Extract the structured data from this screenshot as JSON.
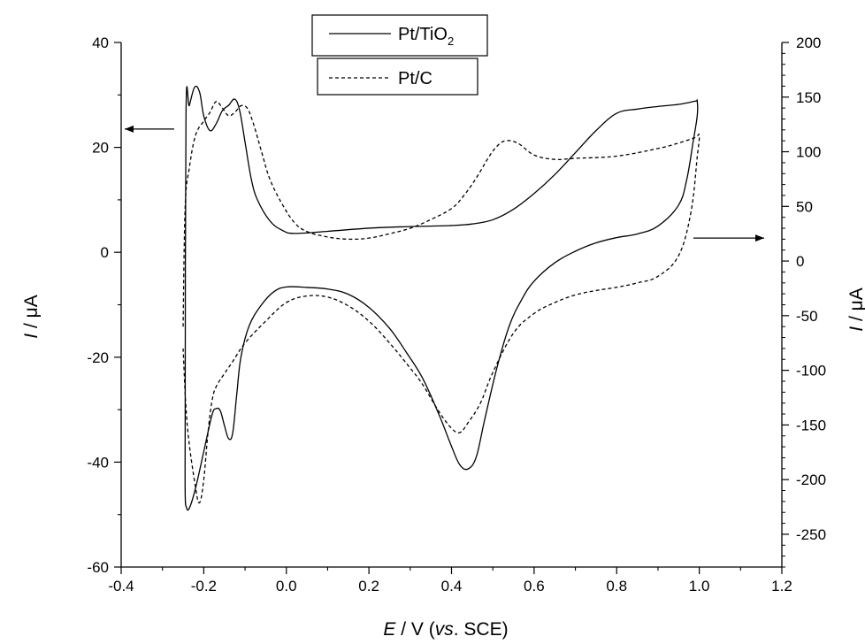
{
  "chart_data": {
    "type": "line",
    "xlabel": {
      "italic": "E",
      "rest": " / V (",
      "italic2": "vs",
      "rest2": ". SCE)"
    },
    "ylabel_left": {
      "italic": "I",
      "rest": " / μA"
    },
    "ylabel_right": {
      "italic": "I",
      "rest": " / μA"
    },
    "xlim": [
      -0.4,
      1.2
    ],
    "ylim_left": [
      -60,
      40
    ],
    "ylim_right": [
      -280,
      200
    ],
    "x_ticks": [
      "-0.4",
      "-0.2",
      "0.0",
      "0.2",
      "0.4",
      "0.6",
      "0.8",
      "1.0",
      "1.2"
    ],
    "y_left_ticks": [
      "-60",
      "-40",
      "-20",
      "0",
      "20",
      "40"
    ],
    "y_right_ticks": [
      "-250",
      "-200",
      "-150",
      "-100",
      "-50",
      "0",
      "50",
      "100",
      "150",
      "200"
    ],
    "legend": [
      {
        "label_main": "Pt/TiO",
        "label_sub": "2",
        "style": "solid"
      },
      {
        "label_main": "Pt/C",
        "label_sub": "",
        "style": "dashed"
      }
    ],
    "series": [
      {
        "name": "Pt/TiO2",
        "axis": "left",
        "style": "solid",
        "x": [
          -0.245,
          -0.243,
          -0.235,
          -0.222,
          -0.21,
          -0.2,
          -0.185,
          -0.17,
          -0.155,
          -0.14,
          -0.125,
          -0.113,
          -0.1,
          -0.085,
          -0.07,
          -0.04,
          -0.01,
          0.02,
          0.1,
          0.2,
          0.3,
          0.4,
          0.45,
          0.5,
          0.55,
          0.6,
          0.65,
          0.7,
          0.75,
          0.8,
          0.85,
          0.9,
          0.95,
          0.99,
          0.995,
          0.995,
          0.985,
          0.97,
          0.95,
          0.9,
          0.85,
          0.8,
          0.75,
          0.7,
          0.65,
          0.6,
          0.57,
          0.54,
          0.51,
          0.48,
          0.46,
          0.44,
          0.42,
          0.4,
          0.37,
          0.33,
          0.29,
          0.25,
          0.2,
          0.15,
          0.1,
          0.05,
          0.0,
          -0.03,
          -0.06,
          -0.09,
          -0.11,
          -0.12,
          -0.13,
          -0.14,
          -0.15,
          -0.16,
          -0.17,
          -0.18,
          -0.2,
          -0.22,
          -0.235,
          -0.242,
          -0.245,
          -0.245
        ],
        "y": [
          -33,
          26.5,
          28,
          31.5,
          30.5,
          26,
          23.2,
          24.5,
          27,
          28,
          29.2,
          27,
          21,
          14,
          10,
          6,
          4.2,
          3.6,
          4,
          4.6,
          4.9,
          5.1,
          5.4,
          6.2,
          8.2,
          11.2,
          14.8,
          19,
          23.2,
          26.5,
          27.3,
          27.8,
          28.2,
          28.8,
          28.8,
          26,
          21,
          14,
          9,
          5,
          3.5,
          2.8,
          1.8,
          0.2,
          -2,
          -5.5,
          -9,
          -14,
          -22,
          -32,
          -39,
          -41.3,
          -40.5,
          -37,
          -31,
          -24,
          -19,
          -14.5,
          -10.5,
          -8,
          -7,
          -6.7,
          -6.6,
          -7.5,
          -10,
          -14,
          -20,
          -27,
          -34.5,
          -35.5,
          -33,
          -30.2,
          -29.8,
          -31,
          -38,
          -45,
          -48.8,
          -48.6,
          -46,
          -33
        ]
      },
      {
        "name": "Pt/C",
        "axis": "right",
        "style": "dashed",
        "x": [
          -0.25,
          -0.245,
          -0.235,
          -0.22,
          -0.2,
          -0.185,
          -0.17,
          -0.155,
          -0.14,
          -0.125,
          -0.11,
          -0.095,
          -0.08,
          -0.06,
          -0.04,
          -0.01,
          0.02,
          0.05,
          0.1,
          0.15,
          0.2,
          0.25,
          0.3,
          0.35,
          0.4,
          0.43,
          0.46,
          0.49,
          0.51,
          0.53,
          0.56,
          0.6,
          0.65,
          0.7,
          0.8,
          0.9,
          0.95,
          0.99,
          1.0,
          0.995,
          0.98,
          0.95,
          0.9,
          0.85,
          0.8,
          0.75,
          0.7,
          0.65,
          0.6,
          0.55,
          0.5,
          0.47,
          0.44,
          0.42,
          0.4,
          0.37,
          0.33,
          0.3,
          0.25,
          0.2,
          0.15,
          0.1,
          0.05,
          0.0,
          -0.05,
          -0.1,
          -0.13,
          -0.15,
          -0.17,
          -0.18,
          -0.19,
          -0.2,
          -0.21,
          -0.22,
          -0.24,
          -0.25
        ],
        "y": [
          -60,
          50,
          85,
          115,
          128,
          136,
          146,
          140,
          133,
          136,
          142,
          140,
          126,
          100,
          75,
          52,
          35,
          27,
          22,
          20,
          21,
          25,
          30,
          38,
          48,
          60,
          76,
          95,
          105,
          110,
          108,
          97,
          93,
          94,
          96,
          103,
          108,
          113,
          115,
          95,
          45,
          5,
          -14,
          -20,
          -24,
          -27,
          -31,
          -38,
          -48,
          -66,
          -102,
          -130,
          -148,
          -157,
          -153,
          -138,
          -113,
          -98,
          -75,
          -55,
          -41,
          -33,
          -32,
          -38,
          -55,
          -75,
          -92,
          -103,
          -115,
          -128,
          -158,
          -200,
          -221,
          -207,
          -150,
          -80
        ]
      }
    ]
  }
}
